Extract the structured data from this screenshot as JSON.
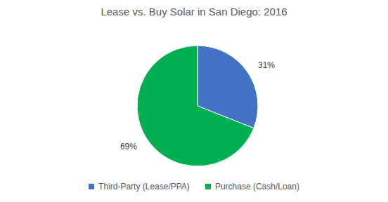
{
  "chart_data": {
    "type": "pie",
    "title": "Lease vs. Buy Solar in San Diego: 2016",
    "categories": [
      "Third-Party (Lease/PPA)",
      "Purchase (Cash/Loan)"
    ],
    "values": [
      31,
      69
    ],
    "value_labels": [
      "31%",
      "69%"
    ],
    "colors": [
      "#4472c4",
      "#00b050"
    ],
    "data_labels": true,
    "legend": "bottom"
  }
}
